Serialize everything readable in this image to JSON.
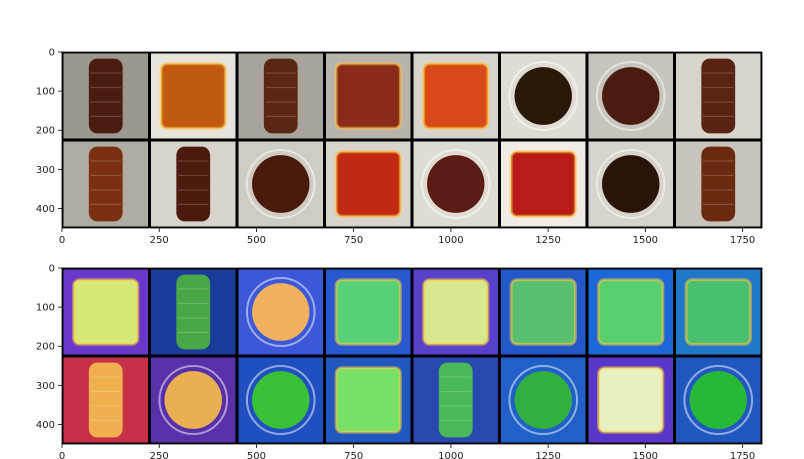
{
  "chart_data": [
    {
      "type": "image-grid",
      "title": "",
      "xlabel": "",
      "ylabel": "",
      "xlim": [
        0,
        1800
      ],
      "ylim": [
        450,
        0
      ],
      "xticks": [
        0,
        250,
        500,
        750,
        1000,
        1250,
        1500,
        1750
      ],
      "yticks": [
        0,
        100,
        200,
        300,
        400
      ],
      "grid": false,
      "rows": 2,
      "cols": 8,
      "tiles": [
        {
          "bg": "#9c9890",
          "subject": "#4a1d10",
          "kind": "bottle"
        },
        {
          "bg": "#e8e4dc",
          "subject": "#c05a10",
          "kind": "tray"
        },
        {
          "bg": "#a8a49c",
          "subject": "#5a2812",
          "kind": "bottle"
        },
        {
          "bg": "#b8b4ac",
          "subject": "#8a2a1a",
          "kind": "tray"
        },
        {
          "bg": "#d8d4cc",
          "subject": "#d84818",
          "kind": "tray"
        },
        {
          "bg": "#e0dcd4",
          "subject": "#2a1808",
          "kind": "dish"
        },
        {
          "bg": "#c8c4bc",
          "subject": "#4a1c10",
          "kind": "dish"
        },
        {
          "bg": "#d8d4cc",
          "subject": "#5a2412",
          "kind": "bottle"
        },
        {
          "bg": "#b0aca4",
          "subject": "#7a3010",
          "kind": "bottle"
        },
        {
          "bg": "#d8d4cc",
          "subject": "#4a1a0c",
          "kind": "bottle"
        },
        {
          "bg": "#d0ccc4",
          "subject": "#4a1a0c",
          "kind": "dish"
        },
        {
          "bg": "#d8d4cc",
          "subject": "#c02a14",
          "kind": "tray"
        },
        {
          "bg": "#e0dcd4",
          "subject": "#5a1c14",
          "kind": "dish"
        },
        {
          "bg": "#f0ece4",
          "subject": "#b81c18",
          "kind": "tray"
        },
        {
          "bg": "#d8d4cc",
          "subject": "#2a1408",
          "kind": "dish"
        },
        {
          "bg": "#c8c4bc",
          "subject": "#6a2a10",
          "kind": "bottle"
        }
      ]
    },
    {
      "type": "image-grid",
      "title": "",
      "xlabel": "",
      "ylabel": "",
      "xlim": [
        0,
        1800
      ],
      "ylim": [
        450,
        0
      ],
      "xticks": [
        0,
        250,
        500,
        750,
        1000,
        1250,
        1500,
        1750
      ],
      "yticks": [
        0,
        100,
        200,
        300,
        400
      ],
      "grid": false,
      "rows": 2,
      "cols": 8,
      "tiles": [
        {
          "bg": "#6a38c8",
          "subject": "#d8e878",
          "kind": "tray"
        },
        {
          "bg": "#1c3c9c",
          "subject": "#48a848",
          "kind": "bottle"
        },
        {
          "bg": "#3c58d8",
          "subject": "#f0b060",
          "kind": "dish"
        },
        {
          "bg": "#2858d0",
          "subject": "#58d078",
          "kind": "tray"
        },
        {
          "bg": "#5840c8",
          "subject": "#d8e890",
          "kind": "tray"
        },
        {
          "bg": "#2458c8",
          "subject": "#58c070",
          "kind": "tray"
        },
        {
          "bg": "#1c68d8",
          "subject": "#58d070",
          "kind": "tray"
        },
        {
          "bg": "#2078c8",
          "subject": "#48c070",
          "kind": "tray"
        },
        {
          "bg": "#c83048",
          "subject": "#f0b050",
          "kind": "bottle"
        },
        {
          "bg": "#5830a8",
          "subject": "#e8b050",
          "kind": "dish"
        },
        {
          "bg": "#2050c0",
          "subject": "#38c038",
          "kind": "dish"
        },
        {
          "bg": "#2058c0",
          "subject": "#78e068",
          "kind": "tray"
        },
        {
          "bg": "#2848b0",
          "subject": "#48b858",
          "kind": "bottle"
        },
        {
          "bg": "#2060c8",
          "subject": "#30b040",
          "kind": "dish"
        },
        {
          "bg": "#5838c8",
          "subject": "#e8f0c0",
          "kind": "tray"
        },
        {
          "bg": "#2058c0",
          "subject": "#28b838",
          "kind": "dish"
        }
      ]
    }
  ]
}
